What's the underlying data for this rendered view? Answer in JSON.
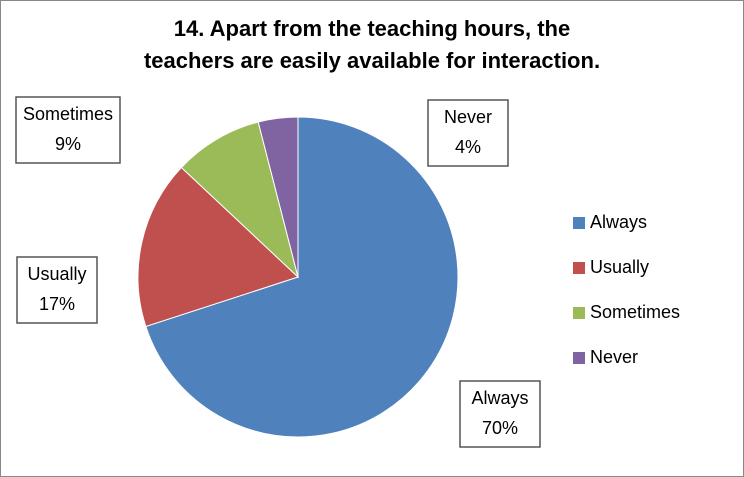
{
  "chart_data": {
    "type": "pie",
    "title": [
      "14. Apart from the teaching hours, the",
      "teachers are easily available for interaction."
    ],
    "categories": [
      "Always",
      "Usually",
      "Sometimes",
      "Never"
    ],
    "values": [
      70,
      17,
      9,
      4
    ],
    "value_labels": [
      "70%",
      "17%",
      "9%",
      "4%"
    ],
    "colors": [
      "#4f81bd",
      "#c0504d",
      "#9bbb59",
      "#8064a2"
    ],
    "legend": "right"
  }
}
